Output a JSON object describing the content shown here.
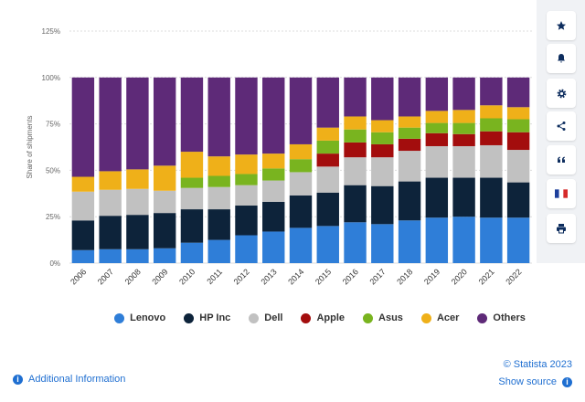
{
  "chart_data": {
    "type": "bar",
    "stacked": true,
    "categories": [
      "2006",
      "2007",
      "2008",
      "2009",
      "2010",
      "2011",
      "2012",
      "2013",
      "2014",
      "2015",
      "2016",
      "2017",
      "2018",
      "2019",
      "2020",
      "2021",
      "2022"
    ],
    "series": [
      {
        "name": "Lenovo",
        "color": "#2f7ed8",
        "values": [
          7,
          7.5,
          7.5,
          8,
          11,
          12.5,
          15,
          17,
          19,
          20,
          22,
          21,
          23,
          24.5,
          25,
          24.5,
          24.5
        ]
      },
      {
        "name": "HP Inc",
        "color": "#0d233a",
        "values": [
          16,
          18,
          18.5,
          19,
          18,
          16.5,
          16,
          16,
          17.5,
          18,
          20,
          20.5,
          21,
          21.5,
          21,
          21.5,
          19
        ]
      },
      {
        "name": "Dell",
        "color": "#c1c1c1",
        "values": [
          15.5,
          14,
          14,
          12,
          11.5,
          12,
          11,
          11.5,
          12.5,
          14,
          15,
          15.5,
          16.5,
          17,
          17,
          17.5,
          17.5
        ]
      },
      {
        "name": "Apple",
        "color": "#a30d0d",
        "values": [
          0,
          0,
          0,
          0,
          0,
          0,
          0,
          0,
          0,
          7,
          8,
          7,
          6.5,
          7,
          6.5,
          7.5,
          9.5
        ]
      },
      {
        "name": "Asus",
        "color": "#79b41f",
        "values": [
          0,
          0,
          0,
          0,
          5.5,
          6,
          6,
          6.5,
          7,
          7,
          7,
          6.5,
          6,
          5.5,
          6,
          7,
          7
        ]
      },
      {
        "name": "Acer",
        "color": "#efb019",
        "values": [
          8,
          10,
          10.5,
          13.5,
          14,
          10.5,
          10.5,
          8,
          8,
          7,
          7,
          6.5,
          6,
          6.5,
          7,
          7,
          6.5
        ]
      },
      {
        "name": "Others",
        "color": "#5e2a78",
        "values": [
          53.5,
          50.5,
          49.5,
          47.5,
          40,
          42.5,
          41.5,
          41,
          36,
          27,
          21,
          23,
          21,
          18,
          17.5,
          15,
          16
        ]
      }
    ],
    "ylabel": "Share of shipments",
    "yticks": [
      "0%",
      "25%",
      "50%",
      "75%",
      "100%",
      "125%"
    ],
    "ylim": [
      0,
      125
    ],
    "grid": true,
    "legend_position": "bottom"
  },
  "footer": {
    "additional_info": "Additional Information",
    "copyright": "© Statista 2023",
    "show_source": "Show source"
  },
  "sidebar": {
    "buttons": [
      "star-icon",
      "bell-icon",
      "gear-icon",
      "share-icon",
      "quote-icon",
      "french-flag-icon",
      "print-icon"
    ]
  }
}
